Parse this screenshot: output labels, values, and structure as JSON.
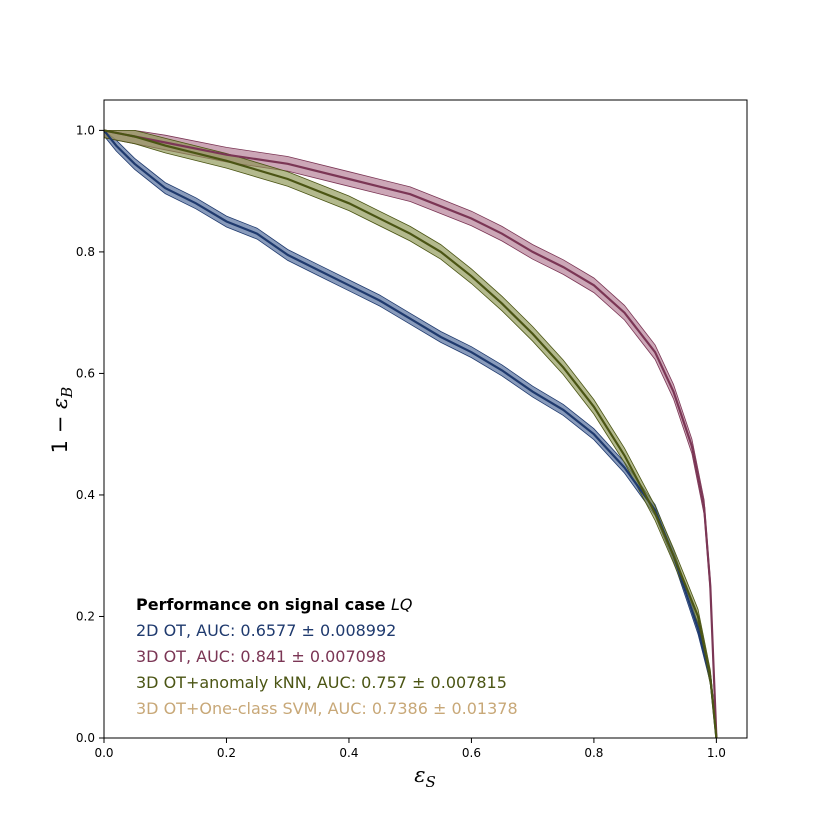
{
  "chart_data": {
    "type": "line",
    "xlabel_base": "ε",
    "xlabel_sub": "S",
    "ylabel_prefix": "1 − ",
    "ylabel_base": "ε",
    "ylabel_sub": "B",
    "xlim": [
      0.0,
      1.05
    ],
    "ylim": [
      0.0,
      1.05
    ],
    "xticks": [
      "0.0",
      "0.2",
      "0.4",
      "0.6",
      "0.8",
      "1.0"
    ],
    "yticks": [
      "0.0",
      "0.2",
      "0.4",
      "0.6",
      "0.8",
      "1.0"
    ],
    "grid": false,
    "legend_placement": "lower-left",
    "legend_title": "Performance on signal case",
    "legend_title_italic": "LQ",
    "series": [
      {
        "name": "2D OT, AUC: 0.6577 ± 0.008992",
        "color": "#1f3a6e",
        "band_color": "#4a6596",
        "x": [
          0,
          0.02,
          0.05,
          0.1,
          0.15,
          0.2,
          0.25,
          0.3,
          0.35,
          0.4,
          0.45,
          0.5,
          0.55,
          0.6,
          0.65,
          0.7,
          0.75,
          0.8,
          0.85,
          0.9,
          0.93,
          0.95,
          0.97,
          0.99,
          1.0
        ],
        "y": [
          1.0,
          0.975,
          0.945,
          0.905,
          0.88,
          0.85,
          0.83,
          0.795,
          0.77,
          0.745,
          0.72,
          0.69,
          0.66,
          0.635,
          0.605,
          0.57,
          0.54,
          0.5,
          0.445,
          0.375,
          0.3,
          0.24,
          0.18,
          0.1,
          0.0
        ],
        "band": 0.009
      },
      {
        "name": "3D OT, AUC: 0.841 ± 0.007098",
        "color": "#7b3655",
        "band_color": "#b07890",
        "x": [
          0,
          0.05,
          0.1,
          0.2,
          0.3,
          0.4,
          0.5,
          0.55,
          0.6,
          0.65,
          0.7,
          0.75,
          0.8,
          0.85,
          0.9,
          0.93,
          0.96,
          0.98,
          0.99,
          1.0
        ],
        "y": [
          1.0,
          0.99,
          0.98,
          0.96,
          0.945,
          0.92,
          0.895,
          0.875,
          0.855,
          0.83,
          0.8,
          0.775,
          0.745,
          0.7,
          0.635,
          0.57,
          0.48,
          0.38,
          0.25,
          0.0
        ],
        "band": 0.012
      },
      {
        "name": "3D OT+anomaly kNN, AUC: 0.757 ± 0.007815",
        "color": "#4b5514",
        "band_color": "#8a9450",
        "x": [
          0,
          0.05,
          0.1,
          0.2,
          0.3,
          0.4,
          0.5,
          0.55,
          0.6,
          0.65,
          0.7,
          0.75,
          0.8,
          0.85,
          0.9,
          0.93,
          0.95,
          0.97,
          0.99,
          1.0
        ],
        "y": [
          1.0,
          0.99,
          0.975,
          0.95,
          0.92,
          0.88,
          0.83,
          0.8,
          0.76,
          0.715,
          0.665,
          0.61,
          0.545,
          0.465,
          0.37,
          0.3,
          0.25,
          0.2,
          0.1,
          0.0
        ],
        "band": 0.012
      },
      {
        "name": "3D OT+One-class SVM, AUC: 0.7386 ± 0.01378",
        "color": "#c8a878",
        "band_color": "#c8a878",
        "x": [],
        "y": [],
        "band": 0
      }
    ]
  }
}
